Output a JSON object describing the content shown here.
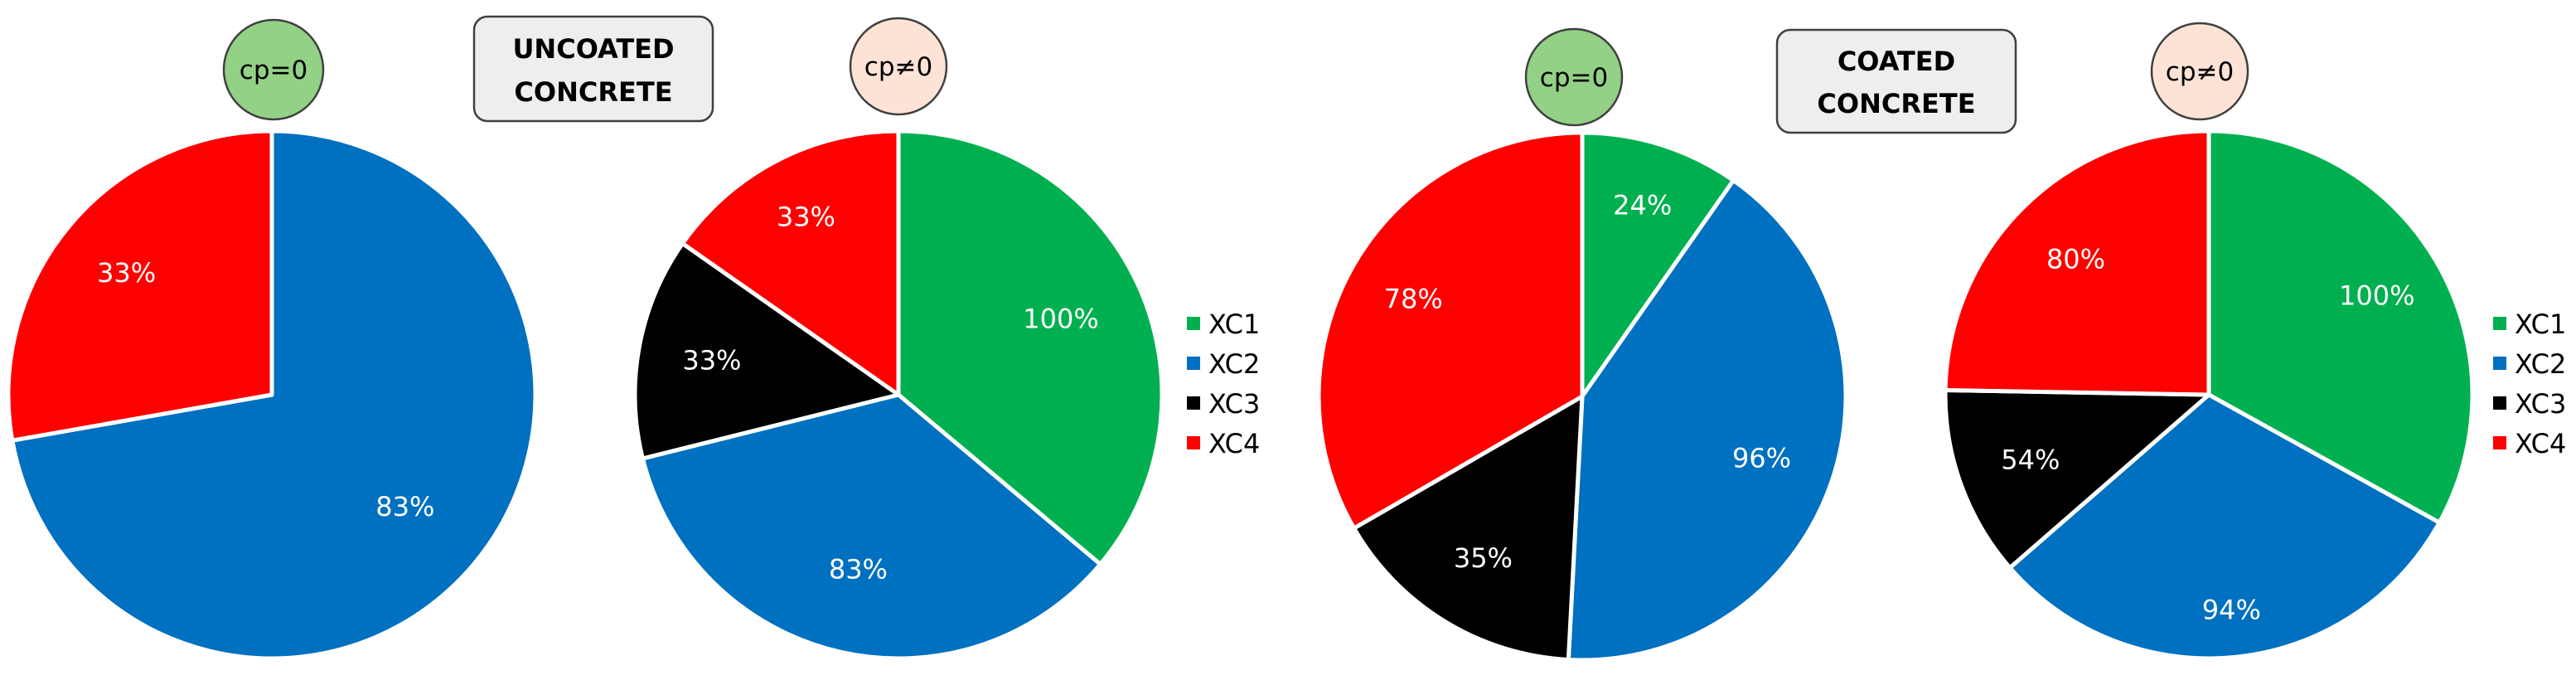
{
  "colors": {
    "XC1": "#00b050",
    "XC2": "#0070c0",
    "XC3": "#000000",
    "XC4": "#ff0000"
  },
  "legend": [
    "XC1",
    "XC2",
    "XC3",
    "XC4"
  ],
  "groups": [
    {
      "title_line1": "UNCOATED",
      "title_line2": "CONCRETE"
    },
    {
      "title_line1": "COATED",
      "title_line2": "CONCRETE"
    }
  ],
  "badges": [
    {
      "label": "cp=0",
      "fill": "#93d187"
    },
    {
      "label": "cp≠0",
      "fill": "#fde3d6"
    },
    {
      "label": "cp=0",
      "fill": "#93d187"
    },
    {
      "label": "cp≠0",
      "fill": "#fde3d6"
    }
  ],
  "chart_data": [
    {
      "type": "pie",
      "group": "UNCOATED CONCRETE",
      "badge": "cp=0",
      "slices": [
        {
          "category": "XC2",
          "label": "83%",
          "share_deg": 260
        },
        {
          "category": "XC4",
          "label": "33%",
          "share_deg": 100
        }
      ]
    },
    {
      "type": "pie",
      "group": "UNCOATED CONCRETE",
      "badge": "cp≠0",
      "slices": [
        {
          "category": "XC1",
          "label": "100%",
          "share_deg": 130
        },
        {
          "category": "XC2",
          "label": "83%",
          "share_deg": 126
        },
        {
          "category": "XC3",
          "label": "33%",
          "share_deg": 49
        },
        {
          "category": "XC4",
          "label": "33%",
          "share_deg": 55
        }
      ]
    },
    {
      "type": "pie",
      "group": "COATED CONCRETE",
      "badge": "cp=0",
      "slices": [
        {
          "category": "XC1",
          "label": "24%",
          "share_deg": 35
        },
        {
          "category": "XC2",
          "label": "96%",
          "share_deg": 148
        },
        {
          "category": "XC3",
          "label": "35%",
          "share_deg": 57
        },
        {
          "category": "XC4",
          "label": "78%",
          "share_deg": 120
        }
      ]
    },
    {
      "type": "pie",
      "group": "COATED CONCRETE",
      "badge": "cp≠0",
      "slices": [
        {
          "category": "XC1",
          "label": "100%",
          "share_deg": 119
        },
        {
          "category": "XC2",
          "label": "94%",
          "share_deg": 110
        },
        {
          "category": "XC3",
          "label": "54%",
          "share_deg": 42
        },
        {
          "category": "XC4",
          "label": "80%",
          "share_deg": 89
        }
      ]
    }
  ]
}
